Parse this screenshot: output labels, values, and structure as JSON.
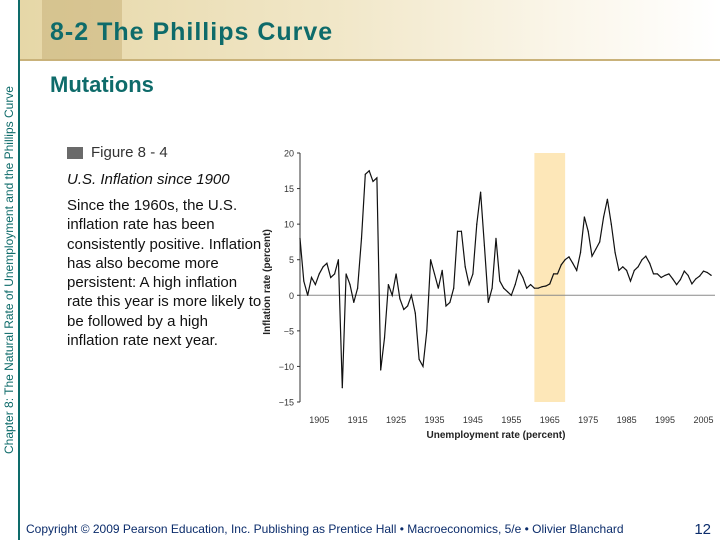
{
  "sidebar": {
    "chapter_text": "Chapter 8: The Natural Rate of Unemployment and the Phillips Curve"
  },
  "header": {
    "title": "8-2  The Phillips Curve"
  },
  "section": {
    "subtitle": "Mutations"
  },
  "figure": {
    "label": "Figure 8 - 4",
    "title": "U.S. Inflation since 1900",
    "description": "Since the 1960s, the U.S. inflation rate has been consistently positive. Inflation has also become more persistent: A high inflation rate this year is more likely to be followed by a high inflation rate next year."
  },
  "footer": {
    "copyright": "Copyright © 2009 Pearson Education, Inc. Publishing as Prentice Hall • Macroeconomics, 5/e • Olivier Blanchard",
    "page_number": "12"
  },
  "colors": {
    "accent": "#0e6b6a",
    "highlight": "#fde7b8",
    "line": "#111111",
    "footer": "#0b2c6b"
  },
  "chart_data": {
    "type": "line",
    "title": "",
    "xlabel": "Unemployment rate (percent)",
    "ylabel": "Inflation rate (percent)",
    "xlim": [
      1900,
      2008
    ],
    "ylim": [
      -15,
      20
    ],
    "xticks": [
      1905,
      1915,
      1925,
      1935,
      1945,
      1955,
      1965,
      1975,
      1985,
      1995,
      2005
    ],
    "yticks": [
      20,
      15,
      10,
      5,
      0,
      -5,
      -10,
      -15
    ],
    "shaded_region": [
      1961,
      1969
    ],
    "zero_line": true,
    "series": [
      {
        "x": [
          1900,
          1901,
          1902,
          1903,
          1904,
          1905,
          1906,
          1907,
          1908,
          1909,
          1910,
          1911,
          1912,
          1913,
          1914,
          1915,
          1916,
          1917,
          1918,
          1919,
          1920,
          1921,
          1922,
          1923,
          1924,
          1925,
          1926,
          1927,
          1928,
          1929,
          1930,
          1931,
          1932,
          1933,
          1934,
          1935,
          1936,
          1937,
          1938,
          1939,
          1940,
          1941,
          1942,
          1943,
          1944,
          1945,
          1946,
          1947,
          1948,
          1949,
          1950,
          1951,
          1952,
          1953,
          1954,
          1955,
          1956,
          1957,
          1958,
          1959,
          1960,
          1961,
          1962,
          1963,
          1964,
          1965,
          1966,
          1967,
          1968,
          1969,
          1970,
          1971,
          1972,
          1973,
          1974,
          1975,
          1976,
          1977,
          1978,
          1979,
          1980,
          1981,
          1982,
          1983,
          1984,
          1985,
          1986,
          1987,
          1988,
          1989,
          1990,
          1991,
          1992,
          1993,
          1994,
          1995,
          1996,
          1997,
          1998,
          1999,
          2000,
          2001,
          2002,
          2003,
          2004,
          2005,
          2006,
          2007
        ],
        "values": [
          8,
          2,
          0,
          2.5,
          1.5,
          3,
          4,
          4.5,
          2.5,
          3,
          5,
          -13,
          3,
          1.5,
          -1,
          1,
          8,
          17,
          17.5,
          16,
          16.5,
          -10.5,
          -6,
          1.5,
          0,
          3,
          -0.5,
          -2,
          -1.5,
          0,
          -2.5,
          -9,
          -10,
          -5,
          5,
          3,
          1,
          3.5,
          -1.5,
          -1,
          1,
          9,
          9,
          4,
          1.5,
          3,
          10,
          14.5,
          7,
          -1,
          1,
          8,
          2,
          1,
          0.5,
          0,
          1.5,
          3.5,
          2.5,
          1,
          1.5,
          1,
          1,
          1.2,
          1.3,
          1.6,
          3,
          3,
          4.3,
          5,
          5.4,
          4.5,
          3.5,
          6,
          11,
          9,
          5.5,
          6.5,
          7.5,
          11,
          13.5,
          10,
          6,
          3.5,
          4,
          3.5,
          2,
          3.5,
          4,
          5,
          5.5,
          4.5,
          3,
          3,
          2.5,
          2.8,
          3,
          2.3,
          1.5,
          2.2,
          3.4,
          2.8,
          1.6,
          2.3,
          2.7,
          3.4,
          3.2,
          2.8
        ]
      }
    ]
  }
}
